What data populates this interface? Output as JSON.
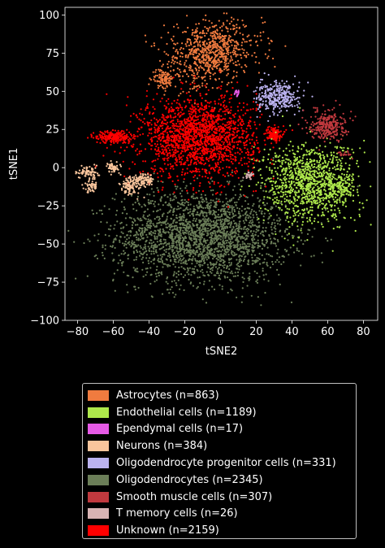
{
  "chart_data": {
    "type": "scatter",
    "title": "",
    "xlabel": "tSNE2",
    "ylabel": "tSNE1",
    "xlim": [
      -87,
      88
    ],
    "ylim": [
      -100,
      105
    ],
    "xticks": [
      -80,
      -60,
      -40,
      -20,
      0,
      20,
      40,
      60,
      80
    ],
    "yticks": [
      -100,
      -75,
      -50,
      -25,
      0,
      25,
      50,
      75,
      100
    ],
    "grid": false,
    "legend_position": "below",
    "background": "#000000",
    "series": [
      {
        "name": "Astrocytes (n=863)",
        "color": "#f07b3f",
        "count": 863,
        "clusters": [
          {
            "center": [
              0,
              78
            ],
            "spread": [
              12,
              9
            ],
            "share": 0.5
          },
          {
            "center": [
              -12,
              70
            ],
            "spread": [
              10,
              10
            ],
            "share": 0.38
          },
          {
            "center": [
              -32,
              58
            ],
            "spread": [
              3,
              3
            ],
            "share": 0.12
          }
        ]
      },
      {
        "name": "Endothelial cells (n=1189)",
        "color": "#aee84b",
        "count": 1189,
        "clusters": [
          {
            "center": [
              50,
              -10
            ],
            "spread": [
              13,
              13
            ],
            "share": 0.9
          },
          {
            "center": [
              66,
              -12
            ],
            "spread": [
              5,
              4
            ],
            "share": 0.1
          }
        ]
      },
      {
        "name": "Ependymal cells (n=17)",
        "color": "#e65ae6",
        "count": 17,
        "clusters": [
          {
            "center": [
              10,
              49
            ],
            "spread": [
              1,
              1
            ],
            "share": 1.0
          }
        ]
      },
      {
        "name": "Neurons (n=384)",
        "color": "#f9c59c",
        "count": 384,
        "clusters": [
          {
            "center": [
              -74,
              -3
            ],
            "spread": [
              3,
              2
            ],
            "share": 0.2
          },
          {
            "center": [
              -72,
              -12
            ],
            "spread": [
              2,
              2
            ],
            "share": 0.15
          },
          {
            "center": [
              -60,
              0
            ],
            "spread": [
              2,
              2
            ],
            "share": 0.15
          },
          {
            "center": [
              -50,
              -12
            ],
            "spread": [
              3,
              3
            ],
            "share": 0.25
          },
          {
            "center": [
              -43,
              -8
            ],
            "spread": [
              3,
              2
            ],
            "share": 0.25
          }
        ]
      },
      {
        "name": "Oligodendrocyte progenitor cells (n=331)",
        "color": "#bbb2ef",
        "count": 331,
        "clusters": [
          {
            "center": [
              32,
              46
            ],
            "spread": [
              6,
              5
            ],
            "share": 1.0
          }
        ]
      },
      {
        "name": "Oligodendrocytes (n=2345)",
        "color": "#6b7e58",
        "count": 2345,
        "clusters": [
          {
            "center": [
              -10,
              -45
            ],
            "spread": [
              24,
              15
            ],
            "share": 1.0
          }
        ]
      },
      {
        "name": "Smooth muscle cells (n=307)",
        "color": "#c0393e",
        "count": 307,
        "clusters": [
          {
            "center": [
              60,
              28
            ],
            "spread": [
              5,
              5
            ],
            "share": 0.94
          },
          {
            "center": [
              70,
              9
            ],
            "spread": [
              2,
              1
            ],
            "share": 0.06
          }
        ]
      },
      {
        "name": "T memory cells (n=26)",
        "color": "#d8b4b4",
        "count": 26,
        "clusters": [
          {
            "center": [
              16,
              -5
            ],
            "spread": [
              1,
              1
            ],
            "share": 1.0
          }
        ]
      },
      {
        "name": "Unknown (n=2159)",
        "color": "#ff0000",
        "count": 2159,
        "clusters": [
          {
            "center": [
              -12,
              20
            ],
            "spread": [
              16,
              13
            ],
            "share": 0.82
          },
          {
            "center": [
              -60,
              20
            ],
            "spread": [
              5,
              2
            ],
            "share": 0.1
          },
          {
            "center": [
              30,
              22
            ],
            "spread": [
              2,
              2
            ],
            "share": 0.08
          }
        ]
      }
    ]
  }
}
